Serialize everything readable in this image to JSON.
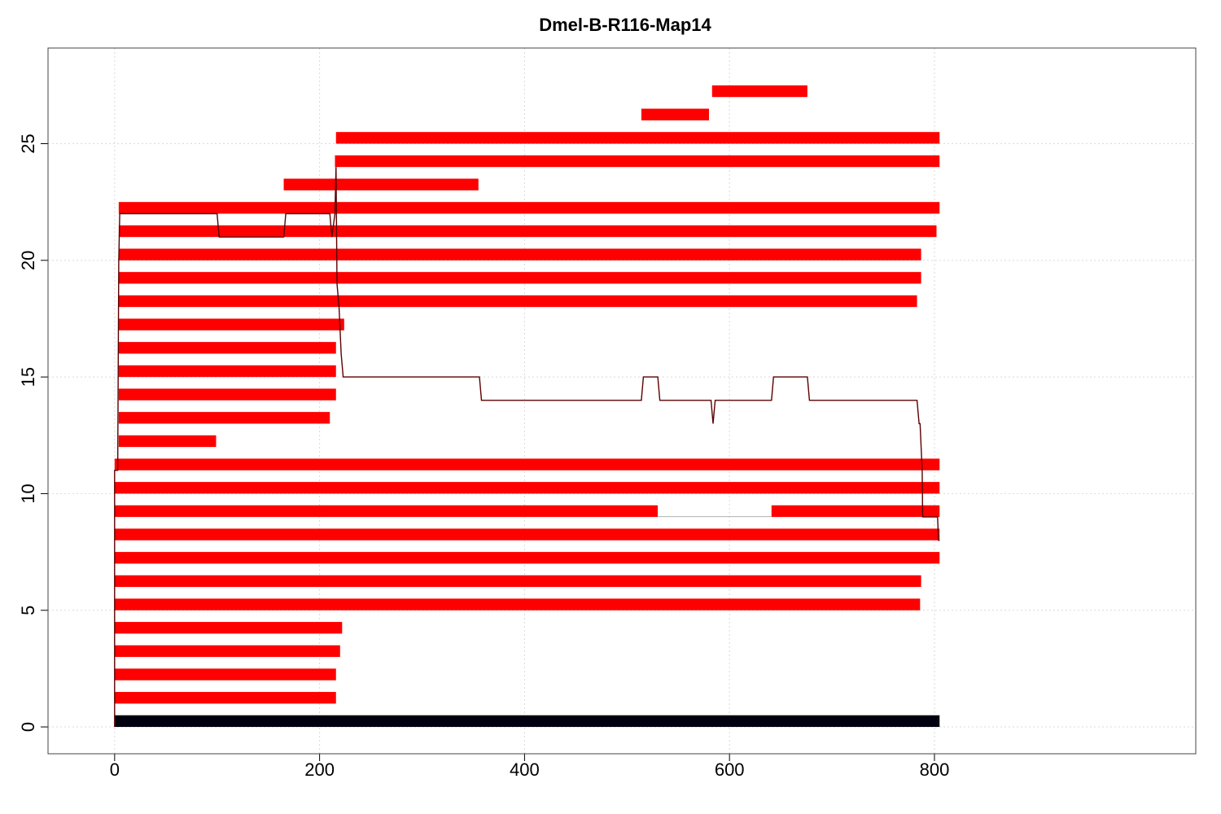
{
  "chart_data": {
    "type": "bar",
    "title": "Dmel-B-R116-Map14",
    "xlabel": "",
    "ylabel": "",
    "xlim": [
      -65,
      1055
    ],
    "ylim": [
      -1.15,
      29.1
    ],
    "x_ticks": [
      "0",
      "200",
      "400",
      "600",
      "800"
    ],
    "y_ticks": [
      "0",
      "5",
      "10",
      "15",
      "20",
      "25"
    ],
    "grid": true,
    "colors": {
      "segment": "#ff0000",
      "reference": "#000010",
      "coverage_line": "#5a0000",
      "gap_line": "#b0b0b0",
      "grid": "#d9d9d9"
    },
    "reference_bar": {
      "y": 0,
      "start": 0,
      "end": 805
    },
    "segments": [
      {
        "row": 1,
        "start": 0,
        "end": 216
      },
      {
        "row": 2,
        "start": 0,
        "end": 216
      },
      {
        "row": 3,
        "start": 0,
        "end": 220
      },
      {
        "row": 4,
        "start": 0,
        "end": 222
      },
      {
        "row": 5,
        "start": 0,
        "end": 786
      },
      {
        "row": 6,
        "start": 0,
        "end": 787
      },
      {
        "row": 7,
        "start": 0,
        "end": 805
      },
      {
        "row": 8,
        "start": 0,
        "end": 805
      },
      {
        "row": 9,
        "start": 0,
        "end": 530
      },
      {
        "row": 9,
        "start": 641,
        "end": 805
      },
      {
        "row": 10,
        "start": 0,
        "end": 805
      },
      {
        "row": 11,
        "start": 0,
        "end": 805
      },
      {
        "row": 12,
        "start": 4,
        "end": 99
      },
      {
        "row": 13,
        "start": 4,
        "end": 210
      },
      {
        "row": 14,
        "start": 4,
        "end": 216
      },
      {
        "row": 15,
        "start": 4,
        "end": 216
      },
      {
        "row": 16,
        "start": 4,
        "end": 216
      },
      {
        "row": 17,
        "start": 4,
        "end": 224
      },
      {
        "row": 18,
        "start": 4,
        "end": 783
      },
      {
        "row": 19,
        "start": 4,
        "end": 787
      },
      {
        "row": 20,
        "start": 4,
        "end": 787
      },
      {
        "row": 21,
        "start": 4,
        "end": 802
      },
      {
        "row": 22,
        "start": 4,
        "end": 805
      },
      {
        "row": 23,
        "start": 165,
        "end": 355
      },
      {
        "row": 24,
        "start": 215,
        "end": 805
      },
      {
        "row": 25,
        "start": 216,
        "end": 805
      },
      {
        "row": 26,
        "start": 514,
        "end": 580
      },
      {
        "row": 27,
        "start": 583,
        "end": 676
      }
    ],
    "gap_connectors": [
      {
        "row": 9,
        "start": 530,
        "end": 641
      }
    ],
    "coverage_line": {
      "x": [
        0,
        0,
        3,
        4,
        5,
        100,
        102,
        165,
        167,
        210,
        212,
        215,
        216,
        217,
        219,
        221,
        223,
        225,
        227,
        356,
        358,
        514,
        516,
        530,
        532,
        580,
        582,
        584,
        586,
        641,
        643,
        676,
        678,
        783,
        785,
        786,
        787,
        788,
        788.5,
        789,
        789.5,
        800,
        802,
        803,
        804,
        805
      ],
      "y": [
        0,
        11,
        11,
        20,
        22,
        22,
        21,
        21,
        22,
        22,
        21,
        22,
        24,
        19,
        18,
        16,
        15,
        15,
        15,
        15,
        14,
        14,
        15,
        15,
        14,
        14,
        14,
        13,
        14,
        14,
        15,
        15,
        14,
        14,
        13,
        13,
        12,
        11,
        9,
        9,
        9,
        9,
        9,
        9,
        8,
        8
      ]
    }
  }
}
